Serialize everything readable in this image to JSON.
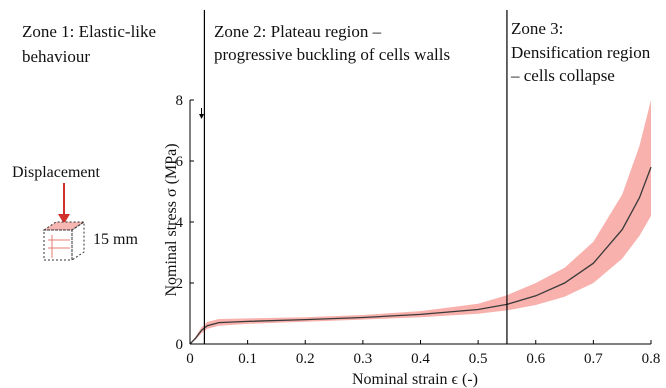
{
  "chart_data": {
    "type": "line",
    "xlabel": "Nominal strain ϵ (-)",
    "ylabel": "Nominal stress σ (MPa)",
    "xlim": [
      0,
      0.8
    ],
    "ylim": [
      0,
      8
    ],
    "x_ticks": [
      "0",
      "0.1",
      "0.2",
      "0.3",
      "0.4",
      "0.5",
      "0.6",
      "0.7",
      "0.8"
    ],
    "y_ticks": [
      "0",
      "2",
      "4",
      "6",
      "8"
    ],
    "grid": false,
    "line_color": "#3a3a3a",
    "band_color": "#f7a8a3",
    "boundary_color": "#000000",
    "series": [
      {
        "x": [
          0,
          0.01,
          0.02,
          0.03,
          0.05,
          0.1,
          0.2,
          0.3,
          0.4,
          0.5,
          0.55,
          0.6,
          0.65,
          0.7,
          0.75,
          0.78,
          0.8
        ],
        "y": [
          0,
          0.2,
          0.45,
          0.6,
          0.7,
          0.74,
          0.8,
          0.87,
          0.97,
          1.13,
          1.3,
          1.58,
          2.0,
          2.65,
          3.75,
          4.8,
          5.8
        ],
        "y_lower": [
          0,
          0.15,
          0.35,
          0.5,
          0.6,
          0.66,
          0.73,
          0.8,
          0.88,
          0.99,
          1.1,
          1.28,
          1.55,
          2.0,
          2.8,
          3.55,
          4.2
        ],
        "y_upper": [
          0,
          0.25,
          0.55,
          0.72,
          0.82,
          0.84,
          0.88,
          0.95,
          1.08,
          1.32,
          1.6,
          2.0,
          2.5,
          3.35,
          4.9,
          6.5,
          8.0
        ]
      }
    ],
    "zone_boundaries": [
      0.025,
      0.55
    ],
    "zones": [
      {
        "title": "Zone 1: Elastic-like",
        "subtitle": "behaviour"
      },
      {
        "title": "Zone 2: Plateau region –",
        "subtitle": "progressive buckling of cells walls"
      },
      {
        "title": "Zone 3:",
        "line2": "Densification region",
        "line3": "– cells collapse"
      }
    ],
    "annotations": {
      "displacement": "Displacement",
      "size": "15 mm"
    }
  }
}
